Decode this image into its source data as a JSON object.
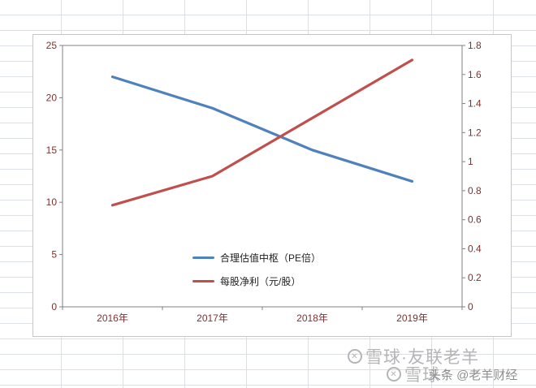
{
  "chart_data": {
    "type": "line",
    "categories": [
      "2016年",
      "2017年",
      "2018年",
      "2019年"
    ],
    "series": [
      {
        "name": "合理估值中枢（PE倍）",
        "axis": "left",
        "color": "#4f81bd",
        "values": [
          22,
          19,
          15,
          12
        ]
      },
      {
        "name": "每股净利（元/股）",
        "axis": "right",
        "color": "#c0504d",
        "values": [
          0.7,
          0.9,
          1.3,
          1.7
        ]
      }
    ],
    "left_axis": {
      "min": 0,
      "max": 25,
      "ticks": [
        "0",
        "5",
        "10",
        "15",
        "20",
        "25"
      ]
    },
    "right_axis": {
      "min": 0,
      "max": 1.8,
      "ticks": [
        "0",
        "0.2",
        "0.4",
        "0.6",
        "0.8",
        "1",
        "1.2",
        "1.4",
        "1.6",
        "1.8"
      ]
    },
    "title": "",
    "xlabel": "",
    "ylabel": "",
    "grid": "off",
    "legend_position": "inside-bottom-center",
    "axis_label_color": "#7b3232",
    "axis_line_color": "#808080"
  },
  "watermark": {
    "primary": "雪球·友联老羊",
    "secondary": "雪球·",
    "footer": "头条 @老羊财经"
  }
}
